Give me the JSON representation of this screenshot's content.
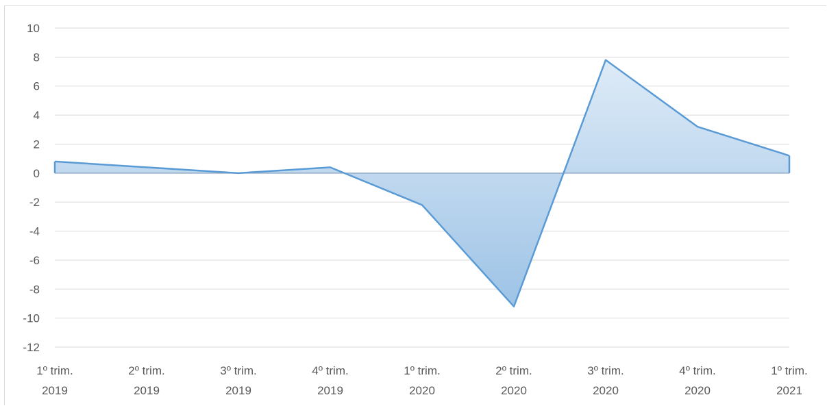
{
  "chart_data": {
    "type": "area",
    "title": "",
    "xlabel": "",
    "ylabel": "",
    "categories": [
      [
        "1º trim.",
        "2019"
      ],
      [
        "2º trim.",
        "2019"
      ],
      [
        "3º trim.",
        "2019"
      ],
      [
        "4º trim.",
        "2019"
      ],
      [
        "1º trim.",
        "2020"
      ],
      [
        "2º trim.",
        "2020"
      ],
      [
        "3º trim.",
        "2020"
      ],
      [
        "4º trim.",
        "2020"
      ],
      [
        "1º trim.",
        "2021"
      ]
    ],
    "series": [
      {
        "values": [
          0.8,
          0.4,
          0.0,
          0.4,
          -2.2,
          -9.2,
          7.8,
          3.2,
          1.2
        ]
      }
    ],
    "ylim": [
      -12,
      10
    ],
    "ytick_step": 2,
    "grid": true,
    "legend": "none",
    "colors": {
      "line": "#5b9bd5",
      "fill_top": "#deebf7",
      "fill_bottom": "#9dc3e6",
      "grid": "#d9d9d9",
      "zero_line": "#8fa9c4"
    }
  }
}
